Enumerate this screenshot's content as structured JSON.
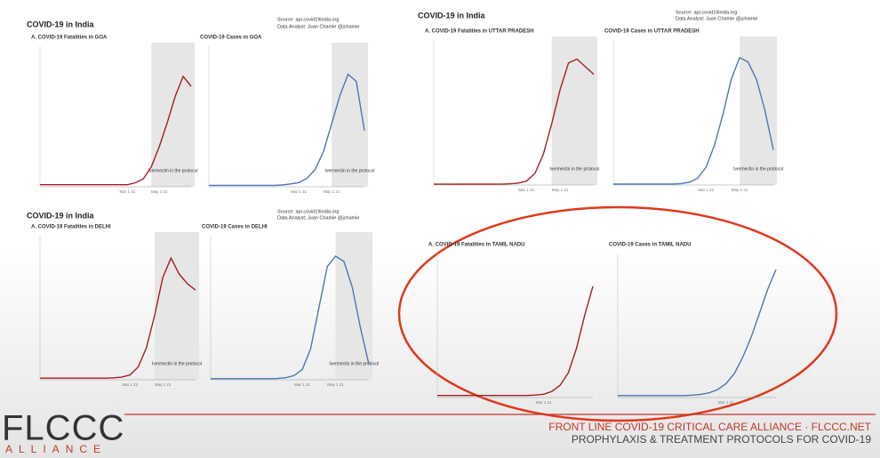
{
  "panels": [
    {
      "heading": "COVID-19 in India",
      "source": "Source: api.covid19india.org",
      "analyst": "Data Analyst:  Juan Chamie @jchamie"
    },
    {
      "heading": "COVID-19 in India",
      "source": "Source: api.covid19india.org",
      "analyst": "Data Analyst:  Juan Chamie @jchamie"
    },
    {
      "heading": "COVID-19 in India",
      "source": "Source: api.covid19india.org",
      "analyst": "Data Analyst:  Juan Chamie @jchamie"
    }
  ],
  "chart_data": [
    {
      "type": "line",
      "title": "A. COVID-19 Fatalities in GOA",
      "categories": [
        null,
        null,
        null,
        null,
        null,
        null,
        null,
        null,
        null,
        null,
        null,
        "Mar 1 21",
        null,
        null,
        null,
        "May 1 21",
        null,
        null,
        null,
        null
      ],
      "ylim": [
        0,
        70
      ],
      "series": [
        {
          "color": "#a31f24",
          "values": [
            1,
            1,
            1,
            1,
            1,
            1,
            1,
            1,
            1,
            1,
            1,
            1,
            2,
            4,
            10,
            20,
            32,
            45,
            55,
            50
          ]
        }
      ],
      "annotation": {
        "text": "Ivermectin in the protocol",
        "span": [
          14,
          19
        ]
      }
    },
    {
      "type": "line",
      "title": "COVID-19 Cases in GOA",
      "categories": [
        null,
        null,
        null,
        null,
        null,
        null,
        null,
        null,
        null,
        null,
        null,
        "Mar 1 21",
        null,
        null,
        null,
        "May 1 21",
        null,
        null,
        null,
        null
      ],
      "ylim": [
        0,
        2000
      ],
      "series": [
        {
          "color": "#4a78b5",
          "values": [
            20,
            20,
            20,
            20,
            20,
            20,
            20,
            20,
            20,
            25,
            40,
            60,
            120,
            250,
            500,
            900,
            1300,
            1600,
            1500,
            800
          ]
        }
      ],
      "annotation": {
        "text": "Ivermectin in the protocol",
        "span": [
          15,
          19
        ]
      }
    },
    {
      "type": "line",
      "title": "A. COVID-19 Fatalities in UTTAR PRADESH",
      "categories": [
        null,
        null,
        null,
        null,
        null,
        null,
        null,
        null,
        null,
        null,
        null,
        "Mar 1 21",
        null,
        null,
        null,
        "May 1 21",
        null,
        null,
        null,
        null
      ],
      "ylim": [
        0,
        380
      ],
      "series": [
        {
          "color": "#a31f24",
          "values": [
            2,
            2,
            2,
            2,
            2,
            2,
            2,
            2,
            2,
            3,
            5,
            10,
            30,
            80,
            160,
            250,
            320,
            330,
            310,
            290
          ]
        }
      ],
      "annotation": {
        "text": "Ivermectin in the protocol",
        "span": [
          14,
          19
        ]
      }
    },
    {
      "type": "line",
      "title": "COVID-19 Cases in UTTAR PRADESH",
      "categories": [
        null,
        null,
        null,
        null,
        null,
        null,
        null,
        null,
        null,
        null,
        null,
        "Mar 1 21",
        null,
        null,
        null,
        "May 1 21",
        null,
        null,
        null,
        null
      ],
      "ylim": [
        0,
        33000
      ],
      "series": [
        {
          "color": "#4a78b5",
          "values": [
            200,
            200,
            200,
            200,
            200,
            200,
            200,
            200,
            300,
            600,
            1500,
            4000,
            9000,
            16000,
            24000,
            29000,
            28000,
            24000,
            17000,
            8000
          ]
        }
      ],
      "annotation": {
        "text": "Ivermectin in the protocol",
        "span": [
          15,
          19
        ]
      }
    },
    {
      "type": "line",
      "title": "A. COVID-19 Fatalities in DELHI",
      "categories": [
        null,
        null,
        null,
        null,
        null,
        null,
        null,
        null,
        null,
        null,
        null,
        "Mar 1 21",
        null,
        null,
        null,
        "May 1 21",
        null,
        null,
        null,
        null
      ],
      "ylim": [
        0,
        450
      ],
      "series": [
        {
          "color": "#a31f24",
          "values": [
            5,
            5,
            5,
            5,
            5,
            5,
            5,
            5,
            5,
            6,
            8,
            15,
            40,
            100,
            200,
            320,
            380,
            330,
            300,
            280
          ]
        }
      ],
      "annotation": {
        "text": "Ivermectin in the protocol",
        "span": [
          14,
          19
        ]
      }
    },
    {
      "type": "line",
      "title": "COVID-19 Cases in DELHI",
      "categories": [
        null,
        null,
        null,
        null,
        null,
        null,
        null,
        null,
        null,
        null,
        null,
        "Mar 1 21",
        null,
        null,
        null,
        "May 1 21",
        null,
        null,
        null,
        null
      ],
      "ylim": [
        0,
        28000
      ],
      "series": [
        {
          "color": "#4a78b5",
          "values": [
            200,
            200,
            200,
            200,
            200,
            200,
            200,
            200,
            250,
            400,
            800,
            2000,
            6000,
            14000,
            22000,
            24000,
            23000,
            18000,
            10000,
            3000
          ]
        }
      ],
      "annotation": {
        "text": "Ivermectin in the protocol",
        "span": [
          15,
          19
        ]
      }
    },
    {
      "type": "line",
      "title": "A. COVID-19 Fatalities in TAMIL NADU",
      "categories": [
        null,
        null,
        null,
        null,
        null,
        null,
        null,
        null,
        null,
        null,
        null,
        null,
        null,
        "Mar 1 21",
        null,
        null,
        null,
        null,
        null,
        null
      ],
      "ylim": [
        0,
        350
      ],
      "series": [
        {
          "color": "#a31f24",
          "values": [
            5,
            5,
            5,
            5,
            5,
            5,
            5,
            5,
            5,
            5,
            5,
            5,
            6,
            8,
            15,
            30,
            60,
            120,
            200,
            270
          ]
        }
      ]
    },
    {
      "type": "line",
      "title": "COVID-19 Cases in TAMIL NADU",
      "categories": [
        null,
        null,
        null,
        null,
        null,
        null,
        null,
        null,
        null,
        null,
        null,
        null,
        null,
        "Mar 1 21",
        null,
        null,
        null,
        null,
        null,
        null
      ],
      "ylim": [
        0,
        36000
      ],
      "series": [
        {
          "color": "#4a78b5",
          "values": [
            500,
            500,
            500,
            500,
            500,
            500,
            500,
            500,
            500,
            600,
            800,
            1200,
            2000,
            3500,
            6000,
            10000,
            15000,
            21000,
            27000,
            32000
          ]
        }
      ]
    }
  ],
  "footer": {
    "logo": "FLCCC",
    "logo_sub": "ALLIANCE",
    "line1": "FRONT LINE COVID-19 CRITICAL CARE ALLIANCE · FLCCC.NET",
    "line2": "PROPHYLAXIS & TREATMENT PROTOCOLS FOR COVID-19"
  }
}
